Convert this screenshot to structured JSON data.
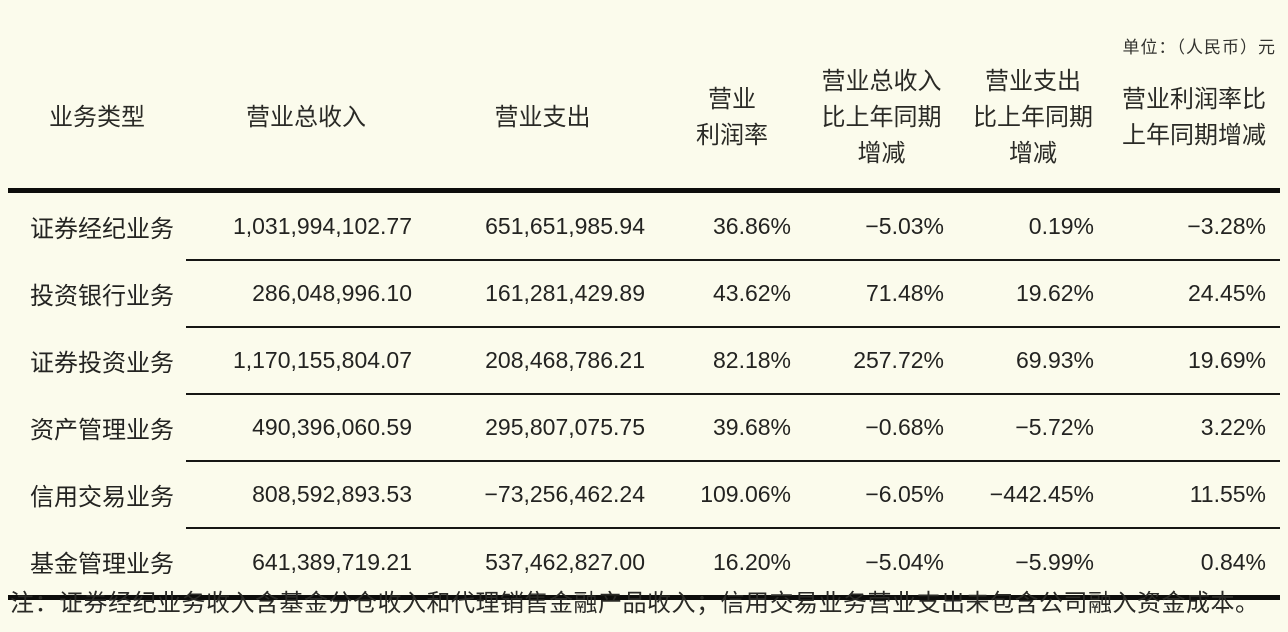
{
  "unit_label": "单位：（人民币）元",
  "table": {
    "headers": [
      "业务类型",
      "营业总收入",
      "营业支出",
      "营业\n利润率",
      "营业总收入\n比上年同期\n增减",
      "营业支出\n比上年同期\n增减",
      "营业利润率比\n上年同期增减"
    ],
    "rows": [
      [
        "证券经纪业务",
        "1,031,994,102.77",
        "651,651,985.94",
        "36.86%",
        "−5.03%",
        "0.19%",
        "−3.28%"
      ],
      [
        "投资银行业务",
        "286,048,996.10",
        "161,281,429.89",
        "43.62%",
        "71.48%",
        "19.62%",
        "24.45%"
      ],
      [
        "证券投资业务",
        "1,170,155,804.07",
        "208,468,786.21",
        "82.18%",
        "257.72%",
        "69.93%",
        "19.69%"
      ],
      [
        "资产管理业务",
        "490,396,060.59",
        "295,807,075.75",
        "39.68%",
        "−0.68%",
        "−5.72%",
        "3.22%"
      ],
      [
        "信用交易业务",
        "808,592,893.53",
        "−73,256,462.24",
        "109.06%",
        "−6.05%",
        "−442.45%",
        "11.55%"
      ],
      [
        "基金管理业务",
        "641,389,719.21",
        "537,462,827.00",
        "16.20%",
        "−5.04%",
        "−5.99%",
        "0.84%"
      ]
    ]
  },
  "note": "注：证券经纪业务收入含基金分仓收入和代理销售金融产品收入；信用交易业务营业支出未包含公司融入资金成本。"
}
